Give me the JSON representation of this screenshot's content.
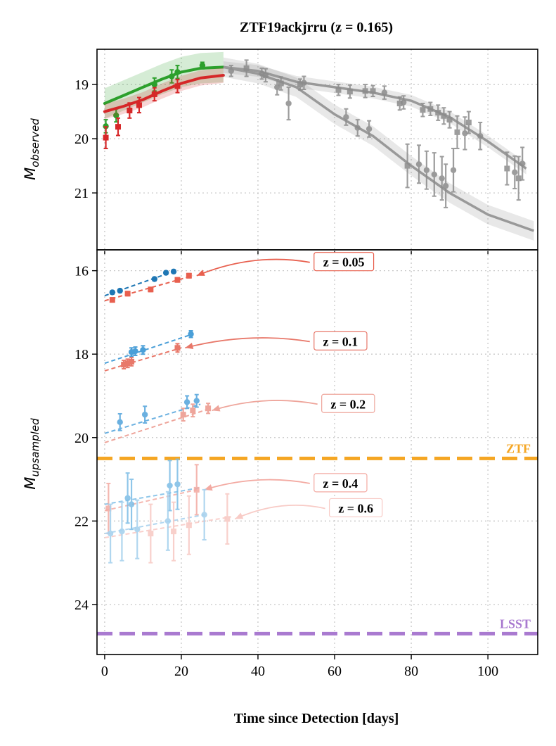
{
  "title": "ZTF19ackjrru (z = 0.165)",
  "xlabel": "Time since Detection [days]",
  "colors": {
    "green": "#2ca02c",
    "red": "#d62728",
    "gray": "#8c8c8c",
    "ztf": "#f5a623",
    "lsst": "#a97ad0",
    "blue_dark": "#1f77b4",
    "red_light": "#e8604f"
  },
  "chart_data": [
    {
      "type": "scatter",
      "panel": "top",
      "ylabel": "M_observed",
      "ylabel_main": "M",
      "ylabel_sub": "observed",
      "xlim": [
        -2,
        113
      ],
      "ylim": [
        22.05,
        18.35
      ],
      "xticks": [
        0,
        20,
        40,
        60,
        80,
        100
      ],
      "yticks": [
        19,
        20,
        21
      ],
      "grid": true,
      "series": [
        {
          "color": "green",
          "points": [
            [
              0.3,
              19.77,
              0.12
            ],
            [
              3,
              19.57,
              0.12
            ],
            [
              13,
              19.0,
              0.12
            ],
            [
              17.5,
              18.85,
              0.12
            ],
            [
              19,
              18.77,
              0.12
            ],
            [
              25.5,
              18.65,
              0.06
            ]
          ],
          "fit": [
            [
              0,
              19.35
            ],
            [
              5,
              19.2
            ],
            [
              10,
              19.05
            ],
            [
              15,
              18.9
            ],
            [
              20,
              18.77
            ],
            [
              25,
              18.7
            ],
            [
              31,
              18.68
            ]
          ],
          "band": 0.28
        },
        {
          "color": "red",
          "points": [
            [
              0.3,
              19.98,
              0.2
            ],
            [
              3.5,
              19.78,
              0.16
            ],
            [
              6.5,
              19.48,
              0.14
            ],
            [
              9,
              19.38,
              0.14
            ],
            [
              13,
              19.18,
              0.12
            ],
            [
              19,
              19.03,
              0.12
            ]
          ],
          "fit": [
            [
              0,
              19.5
            ],
            [
              5,
              19.4
            ],
            [
              10,
              19.28
            ],
            [
              15,
              19.12
            ],
            [
              20,
              18.98
            ],
            [
              25,
              18.88
            ],
            [
              31,
              18.83
            ]
          ],
          "band": 0.14
        },
        {
          "color": "gray",
          "points": [
            [
              33,
              18.75,
              0.1
            ],
            [
              37,
              18.7,
              0.15
            ],
            [
              41,
              18.8,
              0.1
            ],
            [
              42,
              18.83,
              0.12
            ],
            [
              45,
              19.05,
              0.14
            ],
            [
              46,
              18.98,
              0.12
            ],
            [
              48,
              19.35,
              0.3
            ],
            [
              51,
              19.0,
              0.1
            ],
            [
              52,
              18.97,
              0.12
            ],
            [
              61,
              19.1,
              0.1
            ],
            [
              63,
              19.6,
              0.15
            ],
            [
              64,
              19.13,
              0.12
            ],
            [
              66,
              19.8,
              0.15
            ],
            [
              68,
              19.12,
              0.12
            ],
            [
              69,
              19.82,
              0.15
            ],
            [
              70,
              19.12,
              0.1
            ],
            [
              73,
              19.15,
              0.12
            ],
            [
              77,
              19.35,
              0.12
            ],
            [
              78,
              19.33,
              0.12
            ],
            [
              79,
              20.5,
              0.4
            ],
            [
              82,
              20.47,
              0.35
            ],
            [
              83,
              19.47,
              0.12
            ],
            [
              84,
              20.58,
              0.35
            ],
            [
              85,
              19.45,
              0.12
            ],
            [
              86,
              20.66,
              0.4
            ],
            [
              87,
              19.52,
              0.14
            ],
            [
              88,
              20.73,
              0.4
            ],
            [
              88.5,
              19.58,
              0.15
            ],
            [
              89,
              20.87,
              0.4
            ],
            [
              90,
              19.65,
              0.15
            ],
            [
              91,
              20.58,
              0.4
            ],
            [
              92,
              19.88,
              0.3
            ],
            [
              94,
              19.9,
              0.3
            ],
            [
              95,
              19.7,
              0.2
            ],
            [
              98,
              19.95,
              0.25
            ],
            [
              105,
              20.55,
              0.3
            ],
            [
              107,
              20.62,
              0.3
            ],
            [
              108,
              20.73,
              0.4
            ],
            [
              109,
              20.46,
              0.3
            ]
          ],
          "fit_a": [
            [
              31,
              18.68
            ],
            [
              40,
              18.8
            ],
            [
              50,
              19.05
            ],
            [
              60,
              19.55
            ],
            [
              70,
              19.95
            ],
            [
              80,
              20.5
            ],
            [
              90,
              21.0
            ],
            [
              100,
              21.4
            ],
            [
              112,
              21.7
            ]
          ],
          "fit_b": [
            [
              31,
              18.68
            ],
            [
              40,
              18.75
            ],
            [
              50,
              18.95
            ],
            [
              60,
              19.05
            ],
            [
              70,
              19.15
            ],
            [
              80,
              19.3
            ],
            [
              90,
              19.6
            ],
            [
              100,
              20.05
            ],
            [
              110,
              20.55
            ]
          ],
          "band": 0.18
        }
      ]
    },
    {
      "type": "scatter",
      "panel": "bottom",
      "ylabel": "M_upsampled",
      "ylabel_main": "M",
      "ylabel_sub": "upsampled",
      "xlim": [
        -2,
        113
      ],
      "ylim": [
        25.2,
        15.5
      ],
      "xticks": [
        0,
        20,
        40,
        60,
        80,
        100
      ],
      "yticks": [
        16,
        18,
        20,
        22,
        24
      ],
      "grid": true,
      "limits": [
        {
          "name": "ZTF",
          "mag": 20.5,
          "color": "ztf"
        },
        {
          "name": "LSST",
          "mag": 24.7,
          "color": "lsst"
        }
      ],
      "groups": [
        {
          "z_label": "z = 0.05",
          "label_pos": [
            55,
            15.9
          ],
          "arrow_to": [
            24,
            16.12
          ],
          "blue": "#1f77b4",
          "red": "#e8604f",
          "alpha": 1.0,
          "blue_pts": [
            [
              2,
              16.52,
              0.04
            ],
            [
              4,
              16.48,
              0.04
            ],
            [
              13,
              16.2,
              0.04
            ],
            [
              16,
              16.05,
              0.04
            ],
            [
              18,
              16.02,
              0.04
            ]
          ],
          "red_pts": [
            [
              2,
              16.7,
              0.05
            ],
            [
              6,
              16.55,
              0.05
            ],
            [
              12,
              16.45,
              0.05
            ],
            [
              19,
              16.22,
              0.05
            ],
            [
              22,
              16.12,
              0.05
            ]
          ],
          "blue_line": [
            [
              0,
              16.6
            ],
            [
              17,
              16.05
            ]
          ],
          "red_line": [
            [
              0,
              16.72
            ],
            [
              23,
              16.12
            ]
          ]
        },
        {
          "z_label": "z = 0.1",
          "label_pos": [
            55,
            17.8
          ],
          "arrow_to": [
            21,
            17.85
          ],
          "blue": "#4a9fd8",
          "red": "#e8786a",
          "alpha": 1.0,
          "blue_pts": [
            [
              7,
              17.95,
              0.1
            ],
            [
              8,
              17.93,
              0.1
            ],
            [
              10,
              17.9,
              0.1
            ],
            [
              22.5,
              17.52,
              0.08
            ]
          ],
          "red_pts": [
            [
              5,
              18.25,
              0.1
            ],
            [
              6,
              18.22,
              0.1
            ],
            [
              7,
              18.18,
              0.1
            ],
            [
              19,
              17.85,
              0.1
            ]
          ],
          "blue_line": [
            [
              0,
              18.22
            ],
            [
              23,
              17.52
            ]
          ],
          "red_line": [
            [
              0,
              18.4
            ],
            [
              20,
              17.85
            ]
          ]
        },
        {
          "z_label": "z = 0.2",
          "label_pos": [
            57,
            19.3
          ],
          "arrow_to": [
            28,
            19.35
          ],
          "blue": "#6ab0e0",
          "red": "#eea59b",
          "alpha": 1.0,
          "blue_pts": [
            [
              4,
              19.63,
              0.2
            ],
            [
              10.5,
              19.45,
              0.2
            ],
            [
              21.5,
              19.15,
              0.15
            ],
            [
              24,
              19.12,
              0.15
            ]
          ],
          "red_pts": [
            [
              20.5,
              19.45,
              0.15
            ],
            [
              23,
              19.35,
              0.15
            ],
            [
              27,
              19.3,
              0.12
            ]
          ],
          "blue_line": [
            [
              0,
              19.9
            ],
            [
              25,
              19.2
            ]
          ],
          "red_line": [
            [
              0,
              20.12
            ],
            [
              27,
              19.32
            ]
          ]
        },
        {
          "z_label": "z = 0.4",
          "label_pos": [
            55,
            21.2
          ],
          "arrow_to": [
            26,
            21.25
          ],
          "blue": "#7cbde6",
          "red": "#f3aaa2",
          "alpha": 0.85,
          "blue_pts": [
            [
              6,
              21.45,
              0.6
            ],
            [
              7,
              21.6,
              0.6
            ],
            [
              17,
              21.15,
              0.6
            ],
            [
              19,
              21.12,
              0.6
            ]
          ],
          "red_pts": [
            [
              1,
              21.7,
              0.6
            ],
            [
              24,
              21.25,
              0.6
            ]
          ],
          "blue_line": [
            [
              0,
              21.6
            ],
            [
              25,
              21.2
            ]
          ],
          "red_line": [
            [
              0,
              21.75
            ],
            [
              24,
              21.25
            ]
          ]
        },
        {
          "z_label": "z = 0.6",
          "label_pos": [
            59,
            21.8
          ],
          "arrow_to": [
            34,
            21.95
          ],
          "blue": "#a8d2ee",
          "red": "#f8cbc6",
          "alpha": 0.9,
          "blue_pts": [
            [
              1.5,
              22.3,
              0.7
            ],
            [
              4.5,
              22.25,
              0.7
            ],
            [
              8.5,
              22.2,
              0.7
            ],
            [
              16.5,
              22.0,
              0.7
            ],
            [
              26,
              21.85,
              0.6
            ]
          ],
          "red_pts": [
            [
              12,
              22.3,
              0.7
            ],
            [
              18,
              22.25,
              0.7
            ],
            [
              22,
              22.1,
              0.7
            ],
            [
              32,
              21.95,
              0.6
            ]
          ],
          "blue_line": [
            [
              0,
              22.3
            ],
            [
              26,
              21.85
            ]
          ],
          "red_line": [
            [
              0,
              22.4
            ],
            [
              33,
              21.9
            ]
          ]
        }
      ]
    }
  ]
}
